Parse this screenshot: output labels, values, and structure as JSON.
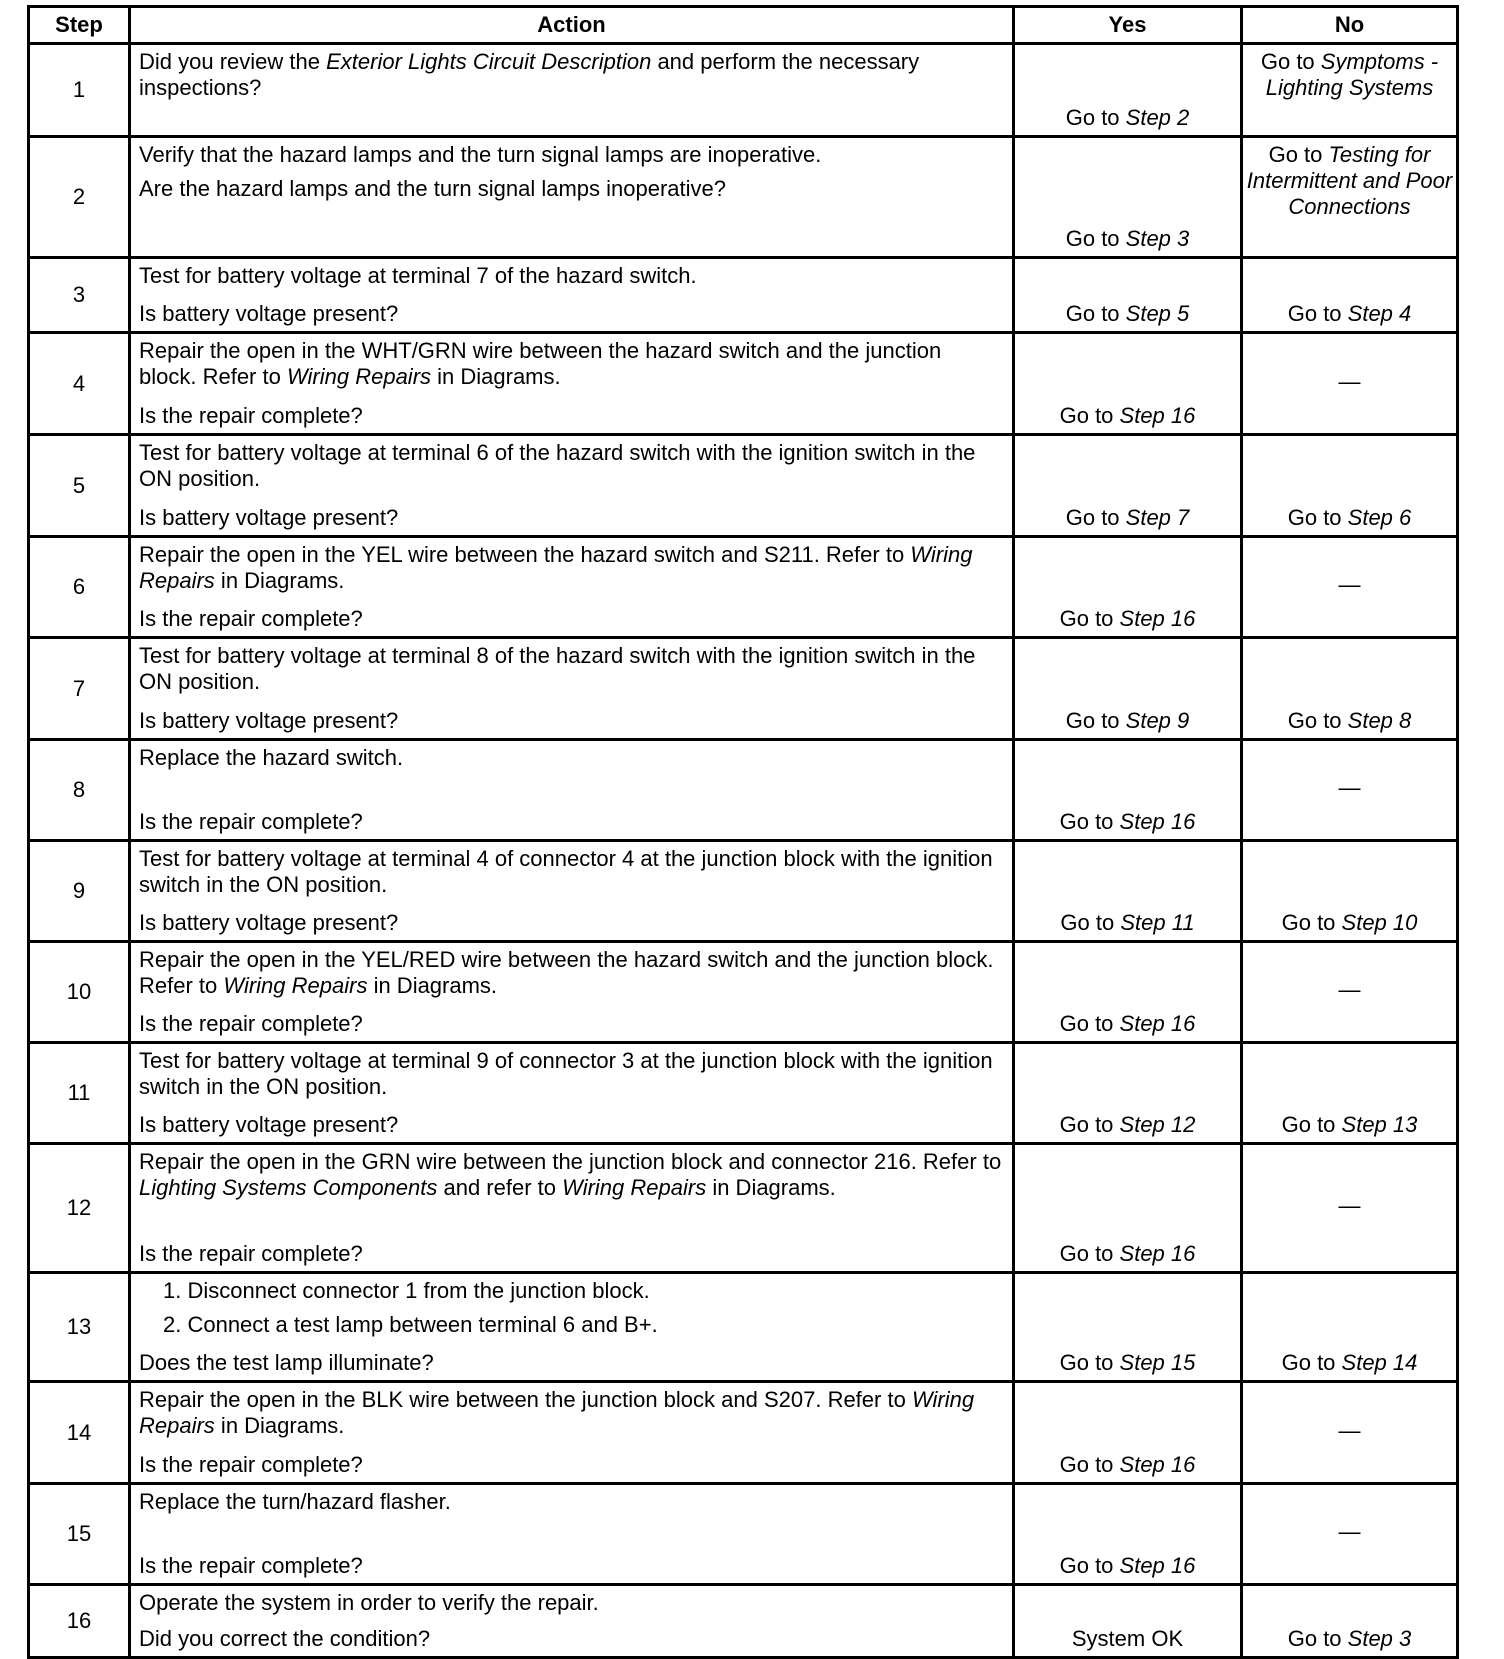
{
  "header": {
    "step": "Step",
    "action": "Action",
    "yes": "Yes",
    "no": "No"
  },
  "rows": [
    {
      "step": "1",
      "top": [
        [
          {
            "t": "Did you review the "
          },
          {
            "t": "Exterior Lights Circuit Description",
            "i": true
          },
          {
            "t": " and perform the necessary inspections?"
          }
        ]
      ],
      "bottom": [],
      "yes": [
        {
          "t": "Go to "
        },
        {
          "t": "Step 2",
          "i": true
        }
      ],
      "no": [
        {
          "t": "Go to "
        },
        {
          "t": "Symptoms - Lighting Systems",
          "i": true
        }
      ],
      "no_align": "top"
    },
    {
      "step": "2",
      "top": [
        [
          {
            "t": "Verify that the hazard lamps and the turn signal lamps are inoperative."
          }
        ],
        [
          {
            "t": "Are the hazard lamps and the turn signal lamps inoperative?"
          }
        ]
      ],
      "bottom": [],
      "yes": [
        {
          "t": "Go to "
        },
        {
          "t": "Step 3",
          "i": true
        }
      ],
      "no": [
        {
          "t": "Go to "
        },
        {
          "t": "Testing for Intermittent and Poor Connections",
          "i": true
        }
      ],
      "no_align": "top"
    },
    {
      "step": "3",
      "top": [
        [
          {
            "t": "Test for battery voltage at terminal 7 of the hazard switch."
          }
        ]
      ],
      "bottom": [
        [
          {
            "t": "Is battery voltage present?"
          }
        ]
      ],
      "yes": [
        {
          "t": "Go to "
        },
        {
          "t": "Step 5",
          "i": true
        }
      ],
      "no": [
        {
          "t": "Go to "
        },
        {
          "t": "Step 4",
          "i": true
        }
      ]
    },
    {
      "step": "4",
      "top": [
        [
          {
            "t": "Repair the open in the WHT/GRN wire between the hazard switch and the junction block. Refer to "
          },
          {
            "t": "Wiring Repairs",
            "i": true
          },
          {
            "t": " in  Diagrams."
          }
        ]
      ],
      "bottom": [
        [
          {
            "t": "Is the repair complete?"
          }
        ]
      ],
      "yes": [
        {
          "t": "Go to "
        },
        {
          "t": "Step 16",
          "i": true
        }
      ],
      "no": [
        {
          "t": "—"
        }
      ],
      "no_align": "mid"
    },
    {
      "step": "5",
      "top": [
        [
          {
            "t": "Test for battery voltage at terminal 6 of the hazard switch with the ignition switch in the ON position."
          }
        ]
      ],
      "bottom": [
        [
          {
            "t": "Is battery voltage present?"
          }
        ]
      ],
      "yes": [
        {
          "t": "Go to "
        },
        {
          "t": "Step 7",
          "i": true
        }
      ],
      "no": [
        {
          "t": "Go to "
        },
        {
          "t": "Step 6",
          "i": true
        }
      ]
    },
    {
      "step": "6",
      "top": [
        [
          {
            "t": "Repair the open in the YEL wire between the hazard switch and S211. Refer to "
          },
          {
            "t": "Wiring Repairs",
            "i": true
          },
          {
            "t": " in Diagrams."
          }
        ]
      ],
      "bottom": [
        [
          {
            "t": "Is the repair complete?"
          }
        ]
      ],
      "yes": [
        {
          "t": "Go to "
        },
        {
          "t": "Step 16",
          "i": true
        }
      ],
      "no": [
        {
          "t": "—"
        }
      ],
      "no_align": "mid"
    },
    {
      "step": "7",
      "top": [
        [
          {
            "t": "Test for battery voltage at terminal 8 of the hazard switch with the ignition switch in the ON position."
          }
        ]
      ],
      "bottom": [
        [
          {
            "t": "Is battery voltage present?"
          }
        ]
      ],
      "yes": [
        {
          "t": "Go to "
        },
        {
          "t": "Step 9",
          "i": true
        }
      ],
      "no": [
        {
          "t": "Go to "
        },
        {
          "t": "Step 8",
          "i": true
        }
      ]
    },
    {
      "step": "8",
      "top": [
        [
          {
            "t": "Replace the hazard switch."
          }
        ]
      ],
      "bottom": [
        [
          {
            "t": "Is the repair complete?"
          }
        ]
      ],
      "yes": [
        {
          "t": "Go to "
        },
        {
          "t": "Step 16",
          "i": true
        }
      ],
      "no": [
        {
          "t": "—"
        }
      ],
      "no_align": "mid"
    },
    {
      "step": "9",
      "top": [
        [
          {
            "t": "Test for battery voltage at terminal 4 of connector 4 at the junction block with the ignition switch in the ON position."
          }
        ]
      ],
      "bottom": [
        [
          {
            "t": "Is battery voltage present?"
          }
        ]
      ],
      "yes": [
        {
          "t": "Go to "
        },
        {
          "t": "Step 11",
          "i": true
        }
      ],
      "no": [
        {
          "t": "Go to "
        },
        {
          "t": "Step 10",
          "i": true
        }
      ]
    },
    {
      "step": "10",
      "top": [
        [
          {
            "t": "Repair the open in the YEL/RED wire between the hazard switch and the junction block. Refer to "
          },
          {
            "t": "Wiring Repairs",
            "i": true
          },
          {
            "t": " in Diagrams."
          }
        ]
      ],
      "bottom": [
        [
          {
            "t": "Is the repair complete?"
          }
        ]
      ],
      "yes": [
        {
          "t": "Go to "
        },
        {
          "t": "Step 16",
          "i": true
        }
      ],
      "no": [
        {
          "t": "—"
        }
      ],
      "no_align": "mid"
    },
    {
      "step": "11",
      "top": [
        [
          {
            "t": "Test for battery voltage at terminal 9 of connector 3 at the junction block with the ignition switch in the ON position."
          }
        ]
      ],
      "bottom": [
        [
          {
            "t": "Is battery voltage present?"
          }
        ]
      ],
      "yes": [
        {
          "t": "Go to "
        },
        {
          "t": "Step 12",
          "i": true
        }
      ],
      "no": [
        {
          "t": "Go to "
        },
        {
          "t": "Step 13",
          "i": true
        }
      ]
    },
    {
      "step": "12",
      "top": [
        [
          {
            "t": "Repair the open in the GRN wire between the junction block and connector 216. Refer to "
          },
          {
            "t": "Lighting Systems Components",
            "i": true
          },
          {
            "t": " and refer to "
          },
          {
            "t": "Wiring Repairs",
            "i": true
          },
          {
            "t": " in Diagrams."
          }
        ]
      ],
      "bottom": [
        [
          {
            "t": "Is the repair complete?"
          }
        ]
      ],
      "yes": [
        {
          "t": "Go to "
        },
        {
          "t": "Step 16",
          "i": true
        }
      ],
      "no": [
        {
          "t": "—"
        }
      ],
      "no_align": "mid"
    },
    {
      "step": "13",
      "top": [
        [
          {
            "t": "1.  Disconnect connector 1 from the junction block."
          }
        ],
        [
          {
            "t": "2.  Connect a test lamp between terminal 6 and B+."
          }
        ]
      ],
      "top_list": true,
      "bottom": [
        [
          {
            "t": "Does the test lamp illuminate?"
          }
        ]
      ],
      "yes": [
        {
          "t": "Go to "
        },
        {
          "t": "Step 15",
          "i": true
        }
      ],
      "no": [
        {
          "t": "Go to "
        },
        {
          "t": "Step 14",
          "i": true
        }
      ]
    },
    {
      "step": "14",
      "top": [
        [
          {
            "t": "Repair the open in the BLK wire between the junction block and S207. Refer to "
          },
          {
            "t": "Wiring Repairs",
            "i": true
          },
          {
            "t": " in Diagrams."
          }
        ]
      ],
      "bottom": [
        [
          {
            "t": "Is the repair complete?"
          }
        ]
      ],
      "yes": [
        {
          "t": "Go to "
        },
        {
          "t": "Step 16",
          "i": true
        }
      ],
      "no": [
        {
          "t": "—"
        }
      ],
      "no_align": "mid"
    },
    {
      "step": "15",
      "top": [
        [
          {
            "t": "Replace the turn/hazard flasher."
          }
        ]
      ],
      "bottom": [
        [
          {
            "t": "Is the repair complete?"
          }
        ]
      ],
      "yes": [
        {
          "t": "Go to "
        },
        {
          "t": "Step 16",
          "i": true
        }
      ],
      "no": [
        {
          "t": "—"
        }
      ],
      "no_align": "mid"
    },
    {
      "step": "16",
      "top": [
        [
          {
            "t": "Operate the system in order to verify the repair."
          }
        ]
      ],
      "bottom": [
        [
          {
            "t": "Did you correct the condition?"
          }
        ]
      ],
      "yes": [
        {
          "t": "System OK"
        }
      ],
      "no": [
        {
          "t": "Go to "
        },
        {
          "t": "Step 3",
          "i": true
        }
      ]
    }
  ]
}
